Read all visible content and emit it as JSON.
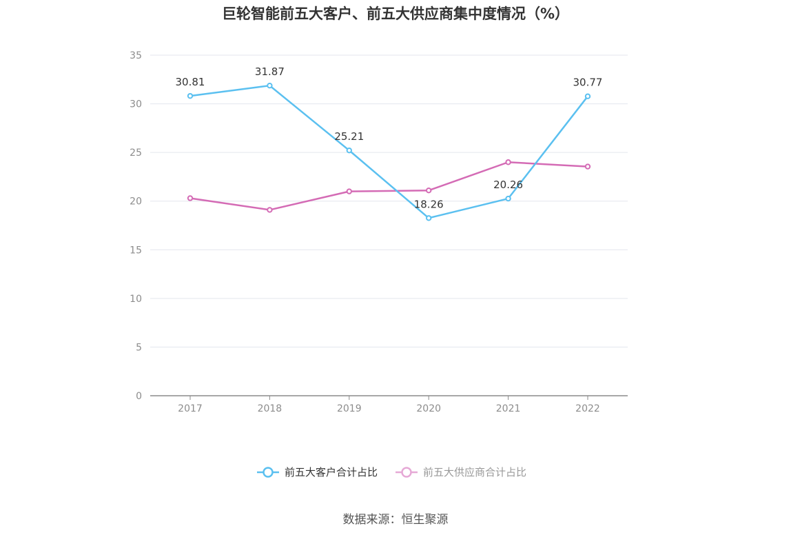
{
  "chart_data": {
    "type": "line",
    "title": "巨轮智能前五大客户、前五大供应商集中度情况（%）",
    "categories": [
      "2017",
      "2018",
      "2019",
      "2020",
      "2021",
      "2022"
    ],
    "ylim": [
      0,
      35
    ],
    "yticks": [
      0,
      5,
      10,
      15,
      20,
      25,
      30,
      35
    ],
    "grid": true,
    "legend_position": "bottom",
    "series": [
      {
        "name": "前五大客户合计占比",
        "values": [
          30.81,
          31.87,
          25.21,
          18.26,
          20.26,
          30.77
        ],
        "labels": [
          "30.81",
          "31.87",
          "25.21",
          "18.26",
          "20.26",
          "30.77"
        ],
        "color": "#5bc0f0"
      },
      {
        "name": "前五大供应商合计占比",
        "values": [
          20.3,
          19.1,
          21.0,
          21.1,
          24.0,
          23.55
        ],
        "color": "#d46bb5"
      }
    ]
  },
  "source": "数据来源：恒生聚源"
}
